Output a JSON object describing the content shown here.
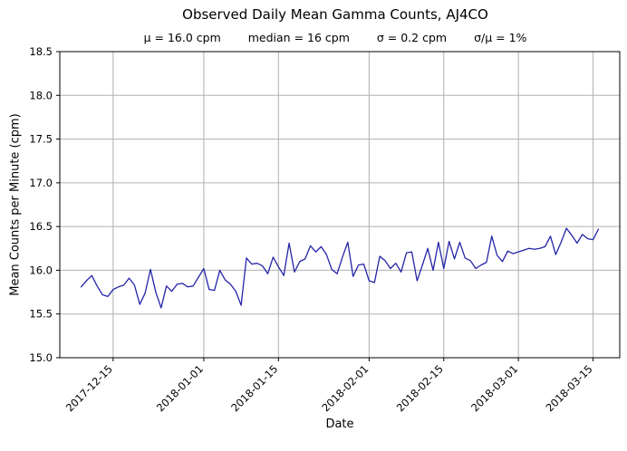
{
  "chart_data": {
    "type": "line",
    "title": "Observed Daily Mean Gamma Counts, AJ4CO",
    "stats": {
      "mu": "μ = 16.0 cpm",
      "median": "median = 16 cpm",
      "sigma": "σ = 0.2 cpm",
      "sigma_over_mu": "σ/μ = 1%"
    },
    "xlabel": "Date",
    "ylabel": "Mean Counts per Minute (cpm)",
    "x_start": "2017-12-09",
    "x_end": "2018-03-16",
    "x_frequency": "daily",
    "values": [
      15.81,
      15.88,
      15.94,
      15.82,
      15.72,
      15.7,
      15.78,
      15.81,
      15.83,
      15.91,
      15.83,
      15.61,
      15.74,
      16.01,
      15.75,
      15.57,
      15.82,
      15.76,
      15.84,
      15.85,
      15.81,
      15.82,
      15.92,
      16.02,
      15.78,
      15.77,
      16.0,
      15.89,
      15.84,
      15.76,
      15.6,
      16.14,
      16.07,
      16.08,
      16.05,
      15.96,
      16.15,
      16.04,
      15.94,
      16.31,
      15.98,
      16.1,
      16.13,
      16.28,
      16.21,
      16.27,
      16.18,
      16.01,
      15.96,
      16.15,
      16.32,
      15.93,
      16.06,
      16.07,
      15.88,
      15.86,
      16.16,
      16.11,
      16.02,
      16.08,
      15.98,
      16.2,
      16.21,
      15.88,
      16.06,
      16.25,
      16.0,
      16.32,
      16.02,
      16.33,
      16.13,
      16.32,
      16.14,
      16.11,
      16.02,
      16.06,
      16.09,
      16.39,
      16.17,
      16.1,
      16.22,
      16.19,
      16.21,
      16.23,
      16.25,
      16.24,
      16.25,
      16.27,
      16.39,
      16.18,
      16.32,
      16.48,
      16.4,
      16.31,
      16.41,
      16.36,
      16.35,
      16.47
    ],
    "x_ticks": [
      "2017-12-15",
      "2018-01-01",
      "2018-01-15",
      "2018-02-01",
      "2018-02-15",
      "2018-03-01",
      "2018-03-15"
    ],
    "y_ticks": [
      "15.0",
      "15.5",
      "16.0",
      "16.5",
      "17.0",
      "17.5",
      "18.0",
      "18.5"
    ],
    "ylim": [
      15.0,
      18.5
    ],
    "xlim": [
      "2017-12-05",
      "2018-03-20"
    ],
    "grid": true,
    "legend": "none",
    "line_color": "#2424a8",
    "grid_color": "#b0b0b0",
    "axis_color": "#000000",
    "background_color": "#ffffff"
  }
}
